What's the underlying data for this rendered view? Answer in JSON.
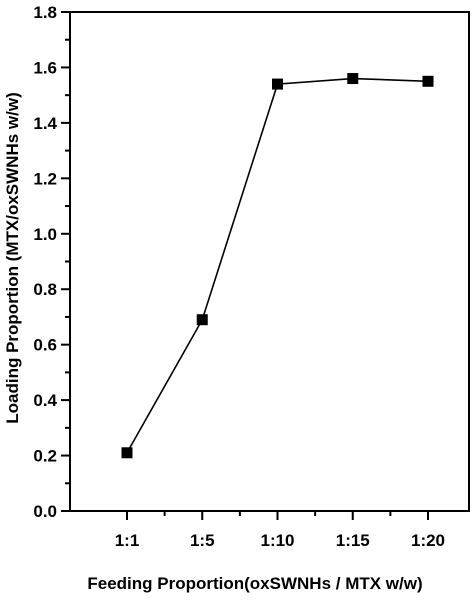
{
  "chart_data": {
    "type": "line",
    "title": "",
    "xlabel": "Feeding Proportion(oxSWNHs / MTX w/w)",
    "ylabel": "Loading Proportion (MTX/oxSWNHs w/w)",
    "categories": [
      "1:1",
      "1:5",
      "1:10",
      "1:15",
      "1:20"
    ],
    "series": [
      {
        "values": [
          0.21,
          0.69,
          1.54,
          1.56,
          1.55
        ]
      }
    ],
    "ylim": [
      0.0,
      1.8
    ],
    "yticks": [
      "0.0",
      "0.2",
      "0.4",
      "0.6",
      "0.8",
      "1.0",
      "1.2",
      "1.4",
      "1.6",
      "1.8"
    ],
    "grid": false,
    "marker": "square",
    "line_color": "#000000"
  }
}
